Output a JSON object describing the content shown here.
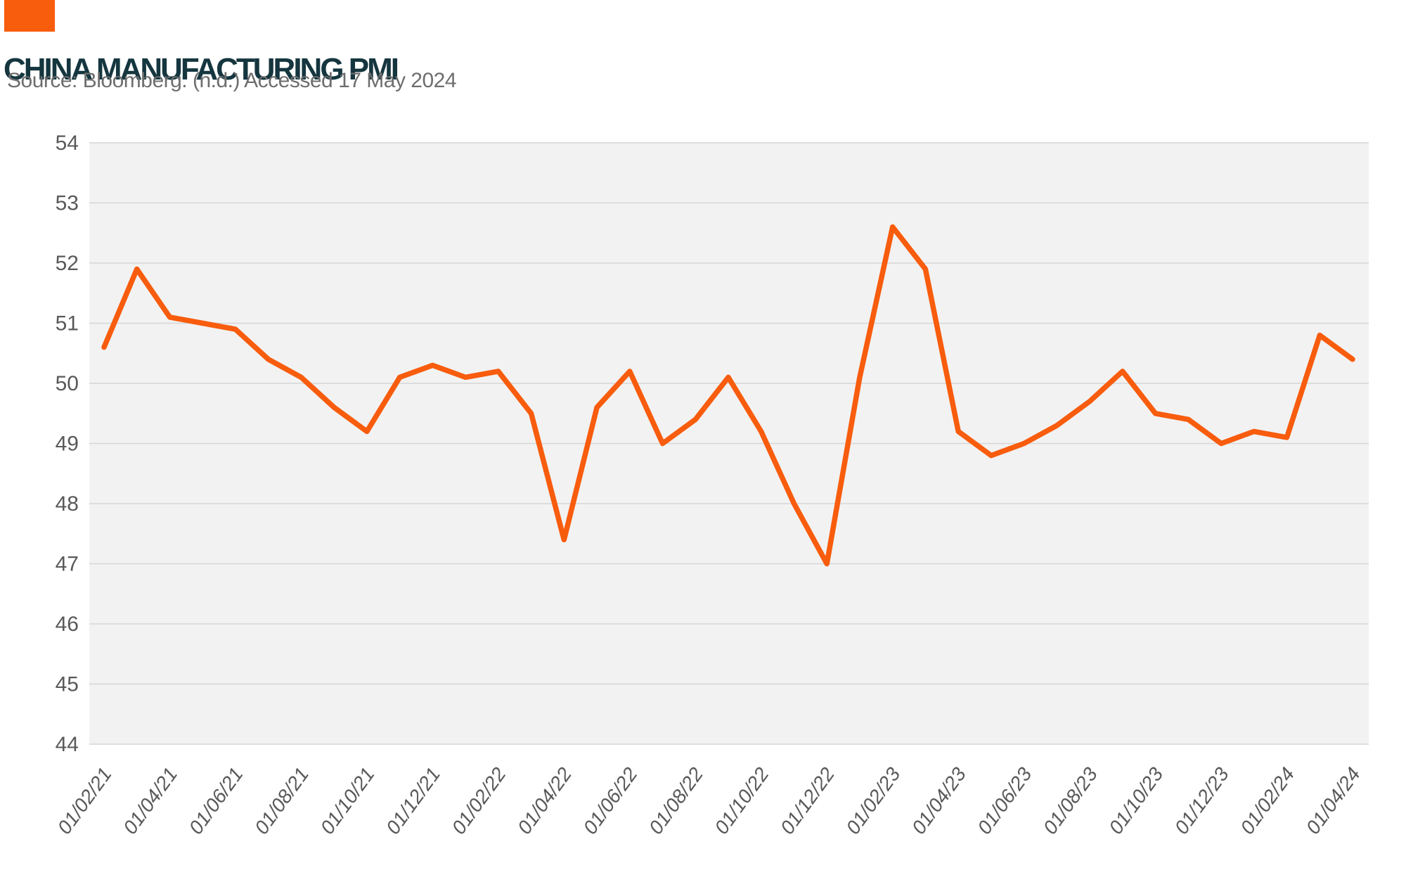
{
  "header": {
    "title": "CHINA MANUFACTURING PMI",
    "source": "Source: Bloomberg. (n.d.) Accessed 17 May 2024"
  },
  "colors": {
    "accent_orange": "#F85C0D",
    "title_teal": "#15363F",
    "source_gray": "#6E6E6E",
    "axis_label_gray": "#595959",
    "plot_background": "#F2F2F2",
    "gridline": "#D6D6D6"
  },
  "chart_data": {
    "type": "line",
    "title": "CHINA MANUFACTURING PMI",
    "source": "Source: Bloomberg. (n.d.) Accessed 17 May 2024",
    "x": [
      "01/02/21",
      "01/03/21",
      "01/04/21",
      "01/05/21",
      "01/06/21",
      "01/07/21",
      "01/08/21",
      "01/09/21",
      "01/10/21",
      "01/11/21",
      "01/12/21",
      "01/01/22",
      "01/02/22",
      "01/03/22",
      "01/04/22",
      "01/05/22",
      "01/06/22",
      "01/07/22",
      "01/08/22",
      "01/09/22",
      "01/10/22",
      "01/11/22",
      "01/12/22",
      "01/01/23",
      "01/02/23",
      "01/03/23",
      "01/04/23",
      "01/05/23",
      "01/06/23",
      "01/07/23",
      "01/08/23",
      "01/09/23",
      "01/10/23",
      "01/11/23",
      "01/12/23",
      "01/01/24",
      "01/02/24",
      "01/03/24",
      "01/04/24"
    ],
    "tick_labels": [
      "01/02/21",
      "01/04/21",
      "01/06/21",
      "01/08/21",
      "01/10/21",
      "01/12/21",
      "01/02/22",
      "01/04/22",
      "01/06/22",
      "01/08/22",
      "01/10/22",
      "01/12/22",
      "01/02/23",
      "01/04/23",
      "01/06/23",
      "01/08/23",
      "01/10/23",
      "01/12/23",
      "01/02/24",
      "01/04/24"
    ],
    "series": [
      {
        "name": "China Manufacturing PMI",
        "values": [
          50.6,
          51.9,
          51.1,
          51.0,
          50.9,
          50.4,
          50.1,
          49.6,
          49.2,
          50.1,
          50.3,
          50.1,
          50.2,
          49.5,
          47.4,
          49.6,
          50.2,
          49.0,
          49.4,
          50.1,
          49.2,
          48.0,
          47.0,
          50.1,
          52.6,
          51.9,
          49.2,
          48.8,
          49.0,
          49.3,
          49.7,
          50.2,
          49.5,
          49.4,
          49.0,
          49.2,
          49.1,
          50.8,
          50.4
        ]
      }
    ],
    "ylim": [
      44,
      54
    ],
    "yticks": [
      54,
      53,
      52,
      51,
      50,
      49,
      48,
      47,
      46,
      45,
      44
    ],
    "grid": true,
    "legend_position": "none",
    "line_color": "#F85C0D"
  }
}
